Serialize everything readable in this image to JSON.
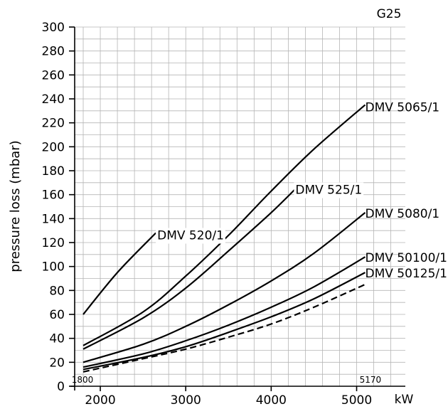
{
  "chart_data": {
    "type": "line",
    "title": "G25",
    "ylabel": "pressure loss (mbar)",
    "xunit": "kW",
    "xlim": [
      1800,
      5170
    ],
    "ylim": [
      0,
      300
    ],
    "x_ticks": [
      "2000",
      "3000",
      "4000",
      "5000"
    ],
    "y_ticks": [
      "0",
      "20",
      "40",
      "60",
      "80",
      "100",
      "120",
      "140",
      "160",
      "180",
      "200",
      "220",
      "240",
      "260",
      "280",
      "300"
    ],
    "x_annotations": [
      "1800",
      "5170"
    ],
    "series": [
      {
        "name": "DMV 520/1",
        "style": "solid",
        "x": [
          1800,
          2200,
          2650
        ],
        "y": [
          60,
          95,
          128
        ]
      },
      {
        "name": "DMV 5065/1",
        "style": "solid",
        "x": [
          1800,
          2500,
          3000,
          3500,
          4000,
          4500,
          5100
        ],
        "y": [
          34,
          62,
          92,
          126,
          163,
          198,
          235
        ]
      },
      {
        "name": "DMV 525/1",
        "style": "solid",
        "x": [
          1800,
          2500,
          3000,
          3500,
          4000,
          4300
        ],
        "y": [
          31,
          57,
          82,
          113,
          145,
          166
        ]
      },
      {
        "name": "DMV 5080/1",
        "style": "solid",
        "x": [
          1800,
          2500,
          3000,
          3500,
          4000,
          4500,
          5100
        ],
        "y": [
          20,
          35,
          50,
          68,
          88,
          111,
          145
        ]
      },
      {
        "name": "DMV 50100/1",
        "style": "solid",
        "x": [
          1800,
          2500,
          3000,
          3500,
          4000,
          4500,
          5100
        ],
        "y": [
          16,
          27,
          38,
          51,
          66,
          83,
          108
        ]
      },
      {
        "name": "DMV 50125/1",
        "style": "solid",
        "x": [
          1800,
          2500,
          3000,
          3500,
          4000,
          4500,
          5100
        ],
        "y": [
          14,
          24,
          33,
          45,
          58,
          73,
          95
        ]
      },
      {
        "name": "",
        "style": "dashed",
        "x": [
          1800,
          2500,
          3000,
          3500,
          4000,
          4500,
          5100
        ],
        "y": [
          12,
          23,
          31,
          41,
          52,
          66,
          85
        ]
      }
    ]
  }
}
